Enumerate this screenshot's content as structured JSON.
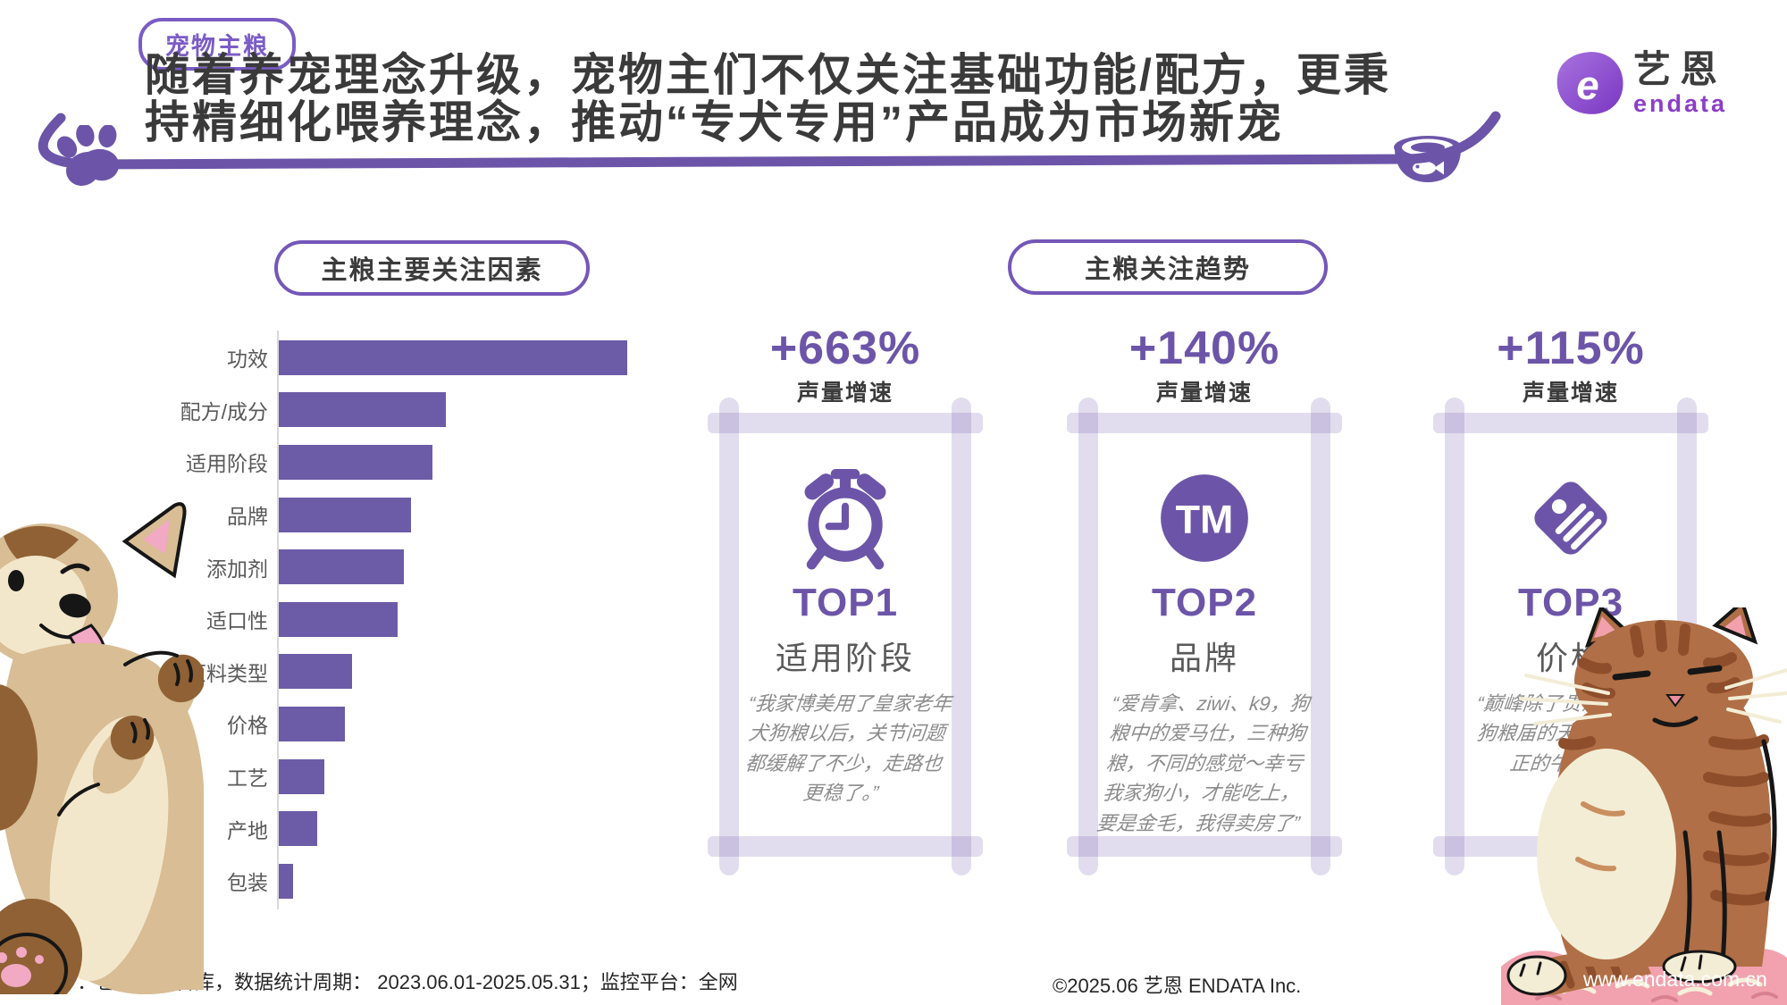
{
  "header": {
    "tag_badge": "宠物主粮",
    "title_line1": "随着养宠理念升级，宠物主们不仅关注基础功能/配方，更秉",
    "title_line2": "持精细化喂养理念，推动“专犬专用”产品成为市场新宠",
    "logo": {
      "zh": "艺恩",
      "en": "endata",
      "mark_letter": "e"
    }
  },
  "left_panel": {
    "header_badge": "主粮主要关注因素"
  },
  "right_panel": {
    "header_badge": "主粮关注趋势",
    "cards": [
      {
        "growth": "+663%",
        "growth_label": "声量增速",
        "icon": "alarm-clock-icon",
        "rank": "TOP1",
        "factor": "适用阶段",
        "quote": "“我家博美用了皇家老年犬狗粮以后，关节问题都缓解了不少，走路也更稳了。”"
      },
      {
        "growth": "+140%",
        "growth_label": "声量增速",
        "icon": "trademark-icon",
        "tm_text": "TM",
        "rank": "TOP2",
        "factor": "品牌",
        "quote": "“爱肯拿、ziwi、k9，狗粮中的爱马仕，三种狗粮，不同的感觉～幸亏我家狗小，才能吃上，要是金毛，我得卖房了”"
      },
      {
        "growth": "+115%",
        "growth_label": "声量增速",
        "icon": "price-tag-icon",
        "rank": "TOP3",
        "factor": "价格",
        "quote": "“巅峰除了贵没毛病，狗粮届的天花板，很正的牛肉味”"
      }
    ]
  },
  "chart_data": {
    "type": "bar",
    "orientation": "horizontal",
    "title": "主粮主要关注因素",
    "categories": [
      "功效",
      "配方/成分",
      "适用阶段",
      "品牌",
      "添加剂",
      "适口性",
      "原料类型",
      "价格",
      "工艺",
      "产地",
      "包装"
    ],
    "values": [
      100,
      48,
      44,
      38,
      36,
      34,
      21,
      19,
      13,
      11,
      4
    ],
    "value_note": "relative index estimated from bar lengths; longest bar normalized to 100; no numeric axis shown in source",
    "xlabel": "",
    "ylabel": "",
    "grid": false,
    "legend": false,
    "bar_color": "#6c5ba7"
  },
  "footer": {
    "source": "source ：艺恩营销智库，数据统计周期： 2023.06.01-2025.05.31；监控平台：全网",
    "copyright": "©2025.06  艺恩 ENDATA Inc.",
    "website": "www.endata.com.cn"
  },
  "colors": {
    "accent_purple": "#6c55a8",
    "badge_border": "#7457b8",
    "bar_purple": "#6c5ba7",
    "frame_lavender": "#d9d0ec",
    "title_text": "#3a3a3a",
    "label_gray": "#595959",
    "quote_gray": "#8c8c8c"
  }
}
